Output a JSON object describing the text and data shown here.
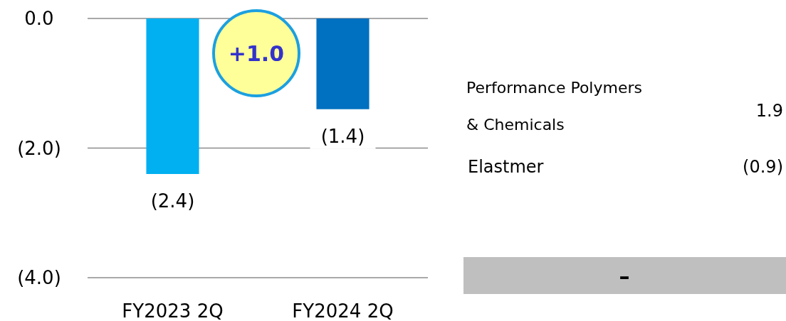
{
  "chart_data": {
    "type": "bar",
    "categories": [
      "FY2023 2Q",
      "FY2024 2Q"
    ],
    "values": [
      -2.4,
      -1.4
    ],
    "colors": [
      "#00b0f0",
      "#0070c0"
    ],
    "value_labels": [
      "(2.4)",
      "(1.4)"
    ],
    "ylim": [
      -4,
      0
    ],
    "yticks": [
      {
        "value": 0,
        "label": "0.0"
      },
      {
        "value": -2,
        "label": "(2.0)"
      },
      {
        "value": -4,
        "label": "(4.0)"
      }
    ],
    "grid": "y",
    "annotations": [
      "+1.0",
      "Performance Polymers",
      "& Chemicals",
      "1.9",
      "Elastmer",
      "(0.9)",
      "–"
    ]
  }
}
